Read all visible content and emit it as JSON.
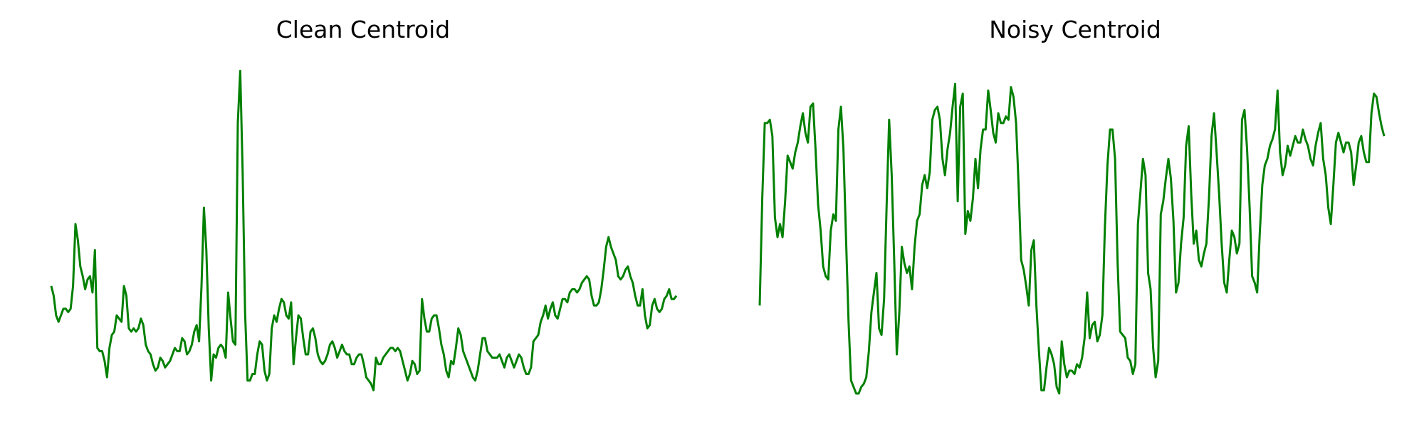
{
  "chart_data": [
    {
      "type": "line",
      "title": "Clean Centroid",
      "color": "#008000",
      "axes_visible": false,
      "grid": false,
      "ylim": [
        0,
        1
      ],
      "values": [
        0.33,
        0.3,
        0.24,
        0.22,
        0.24,
        0.26,
        0.26,
        0.25,
        0.26,
        0.33,
        0.52,
        0.47,
        0.39,
        0.36,
        0.32,
        0.35,
        0.36,
        0.31,
        0.44,
        0.14,
        0.13,
        0.13,
        0.1,
        0.05,
        0.14,
        0.18,
        0.19,
        0.24,
        0.23,
        0.22,
        0.33,
        0.3,
        0.2,
        0.19,
        0.2,
        0.19,
        0.2,
        0.23,
        0.21,
        0.15,
        0.13,
        0.12,
        0.09,
        0.07,
        0.08,
        0.11,
        0.1,
        0.08,
        0.09,
        0.1,
        0.12,
        0.14,
        0.13,
        0.13,
        0.17,
        0.16,
        0.12,
        0.13,
        0.15,
        0.19,
        0.21,
        0.16,
        0.33,
        0.57,
        0.44,
        0.2,
        0.04,
        0.12,
        0.11,
        0.14,
        0.15,
        0.14,
        0.11,
        0.31,
        0.23,
        0.16,
        0.15,
        0.83,
        0.99,
        0.68,
        0.25,
        0.04,
        0.04,
        0.06,
        0.06,
        0.12,
        0.16,
        0.15,
        0.07,
        0.04,
        0.06,
        0.2,
        0.24,
        0.22,
        0.26,
        0.29,
        0.28,
        0.24,
        0.23,
        0.28,
        0.09,
        0.17,
        0.24,
        0.23,
        0.17,
        0.12,
        0.12,
        0.19,
        0.2,
        0.17,
        0.12,
        0.1,
        0.09,
        0.1,
        0.12,
        0.15,
        0.16,
        0.14,
        0.11,
        0.13,
        0.15,
        0.13,
        0.12,
        0.12,
        0.09,
        0.09,
        0.11,
        0.12,
        0.12,
        0.09,
        0.05,
        0.04,
        0.03,
        0.01,
        0.11,
        0.09,
        0.09,
        0.11,
        0.12,
        0.13,
        0.14,
        0.14,
        0.13,
        0.14,
        0.13,
        0.1,
        0.07,
        0.04,
        0.06,
        0.1,
        0.09,
        0.06,
        0.07,
        0.29,
        0.23,
        0.19,
        0.19,
        0.23,
        0.24,
        0.24,
        0.2,
        0.15,
        0.12,
        0.07,
        0.05,
        0.1,
        0.09,
        0.14,
        0.2,
        0.18,
        0.13,
        0.11,
        0.09,
        0.07,
        0.05,
        0.04,
        0.07,
        0.12,
        0.17,
        0.17,
        0.13,
        0.12,
        0.11,
        0.11,
        0.11,
        0.12,
        0.1,
        0.08,
        0.11,
        0.12,
        0.1,
        0.08,
        0.1,
        0.12,
        0.11,
        0.08,
        0.06,
        0.06,
        0.08,
        0.16,
        0.17,
        0.18,
        0.22,
        0.24,
        0.27,
        0.23,
        0.26,
        0.28,
        0.24,
        0.23,
        0.26,
        0.29,
        0.29,
        0.28,
        0.31,
        0.32,
        0.32,
        0.31,
        0.32,
        0.34,
        0.35,
        0.36,
        0.35,
        0.3,
        0.27,
        0.27,
        0.28,
        0.32,
        0.38,
        0.45,
        0.48,
        0.45,
        0.43,
        0.41,
        0.36,
        0.35,
        0.36,
        0.38,
        0.39,
        0.36,
        0.34,
        0.3,
        0.27,
        0.27,
        0.32,
        0.24,
        0.2,
        0.21,
        0.27,
        0.29,
        0.26,
        0.25,
        0.26,
        0.29,
        0.3,
        0.32,
        0.29,
        0.29,
        0.3
      ]
    },
    {
      "type": "line",
      "title": "Noisy Centroid",
      "color": "#008000",
      "axes_visible": false,
      "grid": false,
      "ylim": [
        0,
        1
      ],
      "values": [
        0.27,
        0.6,
        0.83,
        0.83,
        0.84,
        0.79,
        0.54,
        0.48,
        0.52,
        0.48,
        0.59,
        0.73,
        0.71,
        0.69,
        0.74,
        0.77,
        0.82,
        0.86,
        0.8,
        0.77,
        0.88,
        0.89,
        0.75,
        0.58,
        0.5,
        0.39,
        0.36,
        0.35,
        0.5,
        0.55,
        0.53,
        0.81,
        0.88,
        0.75,
        0.48,
        0.22,
        0.04,
        0.02,
        0.0,
        0.0,
        0.02,
        0.03,
        0.05,
        0.13,
        0.25,
        0.31,
        0.37,
        0.2,
        0.18,
        0.29,
        0.58,
        0.84,
        0.67,
        0.41,
        0.12,
        0.25,
        0.45,
        0.4,
        0.37,
        0.39,
        0.32,
        0.45,
        0.53,
        0.55,
        0.64,
        0.67,
        0.63,
        0.68,
        0.84,
        0.87,
        0.88,
        0.84,
        0.72,
        0.67,
        0.75,
        0.8,
        0.88,
        0.95,
        0.59,
        0.88,
        0.92,
        0.49,
        0.56,
        0.53,
        0.6,
        0.72,
        0.63,
        0.75,
        0.81,
        0.81,
        0.93,
        0.87,
        0.8,
        0.77,
        0.86,
        0.83,
        0.83,
        0.85,
        0.84,
        0.94,
        0.91,
        0.83,
        0.64,
        0.41,
        0.38,
        0.33,
        0.27,
        0.44,
        0.47,
        0.27,
        0.13,
        0.01,
        0.01,
        0.08,
        0.14,
        0.12,
        0.09,
        0.02,
        0.0,
        0.16,
        0.09,
        0.05,
        0.07,
        0.07,
        0.06,
        0.09,
        0.08,
        0.11,
        0.17,
        0.31,
        0.17,
        0.21,
        0.22,
        0.16,
        0.18,
        0.24,
        0.51,
        0.7,
        0.81,
        0.81,
        0.72,
        0.4,
        0.19,
        0.18,
        0.17,
        0.11,
        0.1,
        0.06,
        0.09,
        0.52,
        0.62,
        0.72,
        0.67,
        0.37,
        0.32,
        0.14,
        0.05,
        0.1,
        0.55,
        0.59,
        0.66,
        0.72,
        0.66,
        0.53,
        0.31,
        0.34,
        0.46,
        0.54,
        0.76,
        0.82,
        0.61,
        0.46,
        0.5,
        0.41,
        0.39,
        0.43,
        0.46,
        0.6,
        0.79,
        0.86,
        0.74,
        0.61,
        0.46,
        0.34,
        0.31,
        0.41,
        0.5,
        0.48,
        0.43,
        0.46,
        0.84,
        0.87,
        0.75,
        0.57,
        0.36,
        0.34,
        0.31,
        0.49,
        0.64,
        0.7,
        0.72,
        0.76,
        0.78,
        0.81,
        0.93,
        0.74,
        0.67,
        0.7,
        0.76,
        0.73,
        0.76,
        0.79,
        0.77,
        0.77,
        0.81,
        0.78,
        0.76,
        0.72,
        0.7,
        0.76,
        0.8,
        0.83,
        0.72,
        0.67,
        0.57,
        0.52,
        0.64,
        0.77,
        0.8,
        0.77,
        0.74,
        0.77,
        0.77,
        0.74,
        0.64,
        0.7,
        0.77,
        0.79,
        0.74,
        0.71,
        0.71,
        0.86,
        0.92,
        0.91,
        0.86,
        0.82,
        0.79
      ]
    }
  ]
}
